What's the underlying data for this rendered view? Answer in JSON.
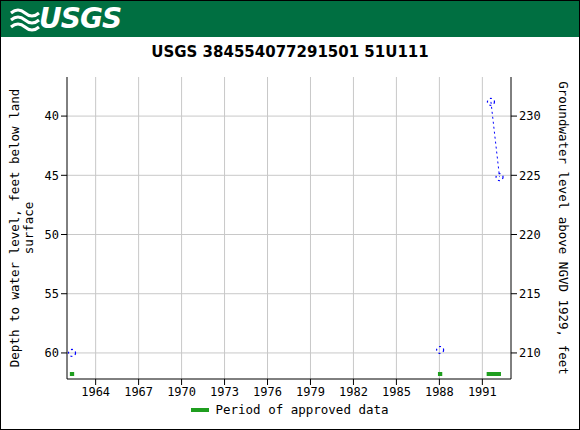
{
  "header": {
    "logo": "USGS"
  },
  "chart_data": {
    "type": "line",
    "title": "USGS 384554077291501 51U111",
    "y_label": "Depth to water level, feet below land surface",
    "y2_label": "Groundwater level above NGVD 1929, feet",
    "x": [
      1962.35,
      1962.35,
      1988.05,
      1988.05,
      1991.6,
      1992.2
    ],
    "values": [
      60.0,
      null,
      59.75,
      null,
      38.8,
      45.15
    ],
    "color": "#0000ff",
    "marker": "circle",
    "line_style": "dotted",
    "xlim": [
      1962,
      1993
    ],
    "xticks": [
      1964,
      1967,
      1970,
      1973,
      1976,
      1979,
      1982,
      1985,
      1988,
      1991
    ],
    "ylim": [
      36.7,
      62.2
    ],
    "yticks": [
      40,
      45,
      50,
      55,
      60
    ],
    "y2lim": [
      207.8,
      233.3
    ],
    "y2ticks": [
      210,
      215,
      220,
      225,
      230
    ],
    "grid": true,
    "approved_periods": {
      "label": "Period of approved data",
      "color": "#1f9e1f",
      "ranges": [
        [
          1962.2,
          1962.5
        ],
        [
          1987.9,
          1988.2
        ],
        [
          1991.3,
          1992.3
        ]
      ]
    }
  }
}
